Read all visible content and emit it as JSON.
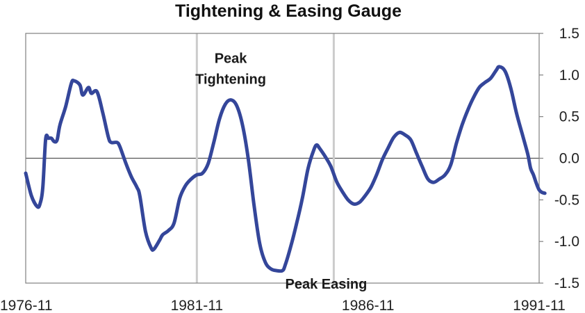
{
  "chart_data": {
    "type": "line",
    "title": "Tightening & Easing Gauge",
    "xlabel": "",
    "ylabel": "",
    "x_ticks": [
      "1976-11",
      "1981-11",
      "1986-11",
      "1991-11"
    ],
    "y_ticks": [
      "1.5",
      "1.0",
      "0.5",
      "0.0",
      "-0.5",
      "-1.0",
      "-1.5"
    ],
    "ylim": [
      -1.5,
      1.5
    ],
    "xlim": [
      "1976-11",
      "1991-11"
    ],
    "grid": false,
    "legend": "none",
    "reference_lines": [
      {
        "axis": "y",
        "value": 0
      },
      {
        "axis": "x",
        "value": "1981-11"
      },
      {
        "axis": "x",
        "value": "1985-11"
      }
    ],
    "annotations": [
      {
        "lines": [
          "Peak",
          "Tightening"
        ],
        "x": "1982-06",
        "y": 0.7
      },
      {
        "lines": [
          "Peak Easing"
        ],
        "x": "1984-05",
        "y": -1.3
      }
    ],
    "series": [
      {
        "color": "#34469a",
        "points": [
          [
            "1976-11",
            -0.18
          ],
          [
            "1977-01",
            -0.45
          ],
          [
            "1977-03",
            -0.58
          ],
          [
            "1977-04",
            -0.55
          ],
          [
            "1977-05",
            -0.35
          ],
          [
            "1977-06",
            0.23
          ],
          [
            "1977-07",
            0.24
          ],
          [
            "1977-08",
            0.24
          ],
          [
            "1977-09",
            0.2
          ],
          [
            "1977-10",
            0.22
          ],
          [
            "1977-11",
            0.4
          ],
          [
            "1978-01",
            0.62
          ],
          [
            "1978-03",
            0.9
          ],
          [
            "1978-04",
            0.93
          ],
          [
            "1978-06",
            0.88
          ],
          [
            "1978-07",
            0.76
          ],
          [
            "1978-09",
            0.85
          ],
          [
            "1978-10",
            0.78
          ],
          [
            "1978-12",
            0.8
          ],
          [
            "1979-02",
            0.55
          ],
          [
            "1979-04",
            0.25
          ],
          [
            "1979-05",
            0.19
          ],
          [
            "1979-07",
            0.19
          ],
          [
            "1979-08",
            0.14
          ],
          [
            "1979-10",
            -0.05
          ],
          [
            "1979-12",
            -0.22
          ],
          [
            "1980-02",
            -0.35
          ],
          [
            "1980-03",
            -0.45
          ],
          [
            "1980-05",
            -0.88
          ],
          [
            "1980-07",
            -1.08
          ],
          [
            "1980-08",
            -1.09
          ],
          [
            "1980-10",
            -0.98
          ],
          [
            "1980-11",
            -0.92
          ],
          [
            "1981-01",
            -0.87
          ],
          [
            "1981-03",
            -0.78
          ],
          [
            "1981-05",
            -0.48
          ],
          [
            "1981-07",
            -0.33
          ],
          [
            "1981-09",
            -0.25
          ],
          [
            "1981-11",
            -0.2
          ],
          [
            "1982-01",
            -0.18
          ],
          [
            "1982-03",
            -0.06
          ],
          [
            "1982-05",
            0.2
          ],
          [
            "1982-07",
            0.48
          ],
          [
            "1982-09",
            0.65
          ],
          [
            "1982-11",
            0.7
          ],
          [
            "1983-01",
            0.63
          ],
          [
            "1983-03",
            0.4
          ],
          [
            "1983-05",
            0.0
          ],
          [
            "1983-07",
            -0.55
          ],
          [
            "1983-09",
            -1.02
          ],
          [
            "1983-11",
            -1.25
          ],
          [
            "1984-01",
            -1.33
          ],
          [
            "1984-03",
            -1.35
          ],
          [
            "1984-05",
            -1.35
          ],
          [
            "1984-06",
            -1.28
          ],
          [
            "1984-08",
            -1.05
          ],
          [
            "1984-10",
            -0.78
          ],
          [
            "1984-12",
            -0.48
          ],
          [
            "1985-02",
            -0.12
          ],
          [
            "1985-04",
            0.1
          ],
          [
            "1985-05",
            0.16
          ],
          [
            "1985-06",
            0.12
          ],
          [
            "1985-08",
            0.02
          ],
          [
            "1985-10",
            -0.1
          ],
          [
            "1985-12",
            -0.28
          ],
          [
            "1986-02",
            -0.4
          ],
          [
            "1986-04",
            -0.5
          ],
          [
            "1986-06",
            -0.55
          ],
          [
            "1986-08",
            -0.53
          ],
          [
            "1986-10",
            -0.45
          ],
          [
            "1986-12",
            -0.35
          ],
          [
            "1987-02",
            -0.2
          ],
          [
            "1987-04",
            -0.02
          ],
          [
            "1987-06",
            0.12
          ],
          [
            "1987-08",
            0.25
          ],
          [
            "1987-10",
            0.31
          ],
          [
            "1987-12",
            0.28
          ],
          [
            "1988-02",
            0.22
          ],
          [
            "1988-04",
            0.06
          ],
          [
            "1988-06",
            -0.1
          ],
          [
            "1988-08",
            -0.25
          ],
          [
            "1988-10",
            -0.29
          ],
          [
            "1988-12",
            -0.25
          ],
          [
            "1989-02",
            -0.2
          ],
          [
            "1989-04",
            -0.08
          ],
          [
            "1989-06",
            0.18
          ],
          [
            "1989-08",
            0.4
          ],
          [
            "1989-10",
            0.58
          ],
          [
            "1989-12",
            0.73
          ],
          [
            "1990-02",
            0.85
          ],
          [
            "1990-04",
            0.91
          ],
          [
            "1990-06",
            0.96
          ],
          [
            "1990-08",
            1.06
          ],
          [
            "1990-09",
            1.1
          ],
          [
            "1990-11",
            1.05
          ],
          [
            "1991-01",
            0.85
          ],
          [
            "1991-03",
            0.55
          ],
          [
            "1991-05",
            0.3
          ],
          [
            "1991-07",
            0.05
          ],
          [
            "1991-08",
            -0.12
          ],
          [
            "1991-09",
            -0.2
          ],
          [
            "1991-10",
            -0.3
          ],
          [
            "1991-11",
            -0.38
          ],
          [
            "1991-12",
            -0.41
          ],
          [
            "1992-01",
            -0.42
          ]
        ]
      }
    ]
  }
}
